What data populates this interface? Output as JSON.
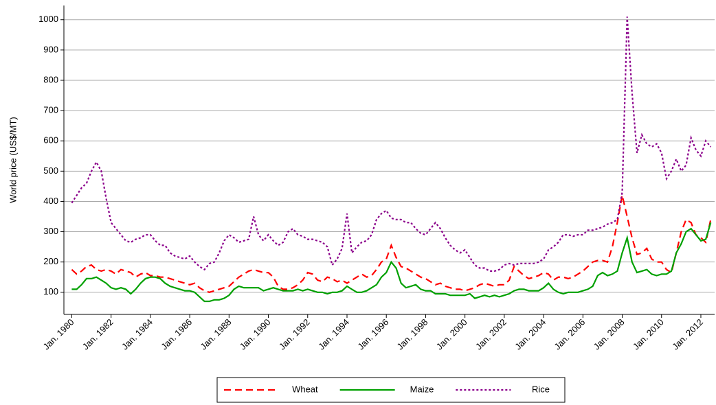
{
  "chart_data": {
    "type": "line",
    "y_label": "World price (US$/MT)",
    "x": [
      1980,
      1980.25,
      1980.5,
      1980.75,
      1981,
      1981.25,
      1981.5,
      1981.75,
      1982,
      1982.25,
      1982.5,
      1982.75,
      1983,
      1983.25,
      1983.5,
      1983.75,
      1984,
      1984.25,
      1984.5,
      1984.75,
      1985,
      1985.25,
      1985.5,
      1985.75,
      1986,
      1986.25,
      1986.5,
      1986.75,
      1987,
      1987.25,
      1987.5,
      1987.75,
      1988,
      1988.25,
      1988.5,
      1988.75,
      1989,
      1989.25,
      1989.5,
      1989.75,
      1990,
      1990.25,
      1990.5,
      1990.75,
      1991,
      1991.25,
      1991.5,
      1991.75,
      1992,
      1992.25,
      1992.5,
      1992.75,
      1993,
      1993.25,
      1993.5,
      1993.75,
      1994,
      1994.25,
      1994.5,
      1994.75,
      1995,
      1995.25,
      1995.5,
      1995.75,
      1996,
      1996.25,
      1996.5,
      1996.75,
      1997,
      1997.25,
      1997.5,
      1997.75,
      1998,
      1998.25,
      1998.5,
      1998.75,
      1999,
      1999.25,
      1999.5,
      1999.75,
      2000,
      2000.25,
      2000.5,
      2000.75,
      2001,
      2001.25,
      2001.5,
      2001.75,
      2002,
      2002.25,
      2002.5,
      2002.75,
      2003,
      2003.25,
      2003.5,
      2003.75,
      2004,
      2004.25,
      2004.5,
      2004.75,
      2005,
      2005.25,
      2005.5,
      2005.75,
      2006,
      2006.25,
      2006.5,
      2006.75,
      2007,
      2007.25,
      2007.5,
      2007.75,
      2008,
      2008.25,
      2008.5,
      2008.75,
      2009,
      2009.25,
      2009.5,
      2009.75,
      2010,
      2010.25,
      2010.5,
      2010.75,
      2011,
      2011.25,
      2011.5,
      2011.75,
      2012,
      2012.25,
      2012.5
    ],
    "series": [
      {
        "name": "Wheat",
        "color": "#ff0000",
        "dash": "10 6",
        "values": [
          175,
          160,
          170,
          185,
          190,
          175,
          170,
          175,
          170,
          160,
          175,
          170,
          165,
          150,
          160,
          165,
          155,
          155,
          150,
          150,
          145,
          140,
          135,
          130,
          125,
          130,
          115,
          105,
          100,
          105,
          110,
          115,
          120,
          135,
          150,
          160,
          170,
          175,
          170,
          165,
          165,
          150,
          120,
          110,
          110,
          115,
          125,
          140,
          165,
          160,
          140,
          135,
          150,
          145,
          135,
          140,
          130,
          140,
          150,
          160,
          150,
          155,
          175,
          200,
          210,
          255,
          215,
          185,
          180,
          170,
          160,
          150,
          145,
          135,
          125,
          130,
          120,
          115,
          110,
          110,
          105,
          110,
          115,
          125,
          130,
          125,
          120,
          125,
          125,
          140,
          185,
          170,
          155,
          145,
          150,
          155,
          165,
          160,
          140,
          150,
          150,
          145,
          150,
          160,
          170,
          185,
          200,
          205,
          205,
          200,
          250,
          330,
          420,
          350,
          280,
          225,
          230,
          245,
          210,
          200,
          200,
          175,
          165,
          230,
          300,
          340,
          330,
          290,
          280,
          265,
          340
        ]
      },
      {
        "name": "Maize",
        "color": "#00a000",
        "dash": "",
        "values": [
          110,
          110,
          125,
          145,
          145,
          150,
          140,
          130,
          115,
          110,
          115,
          110,
          95,
          110,
          130,
          145,
          150,
          150,
          145,
          130,
          120,
          115,
          110,
          105,
          105,
          100,
          85,
          70,
          70,
          75,
          75,
          80,
          90,
          110,
          120,
          115,
          115,
          115,
          115,
          105,
          110,
          115,
          110,
          105,
          105,
          105,
          110,
          105,
          110,
          105,
          100,
          100,
          95,
          100,
          100,
          105,
          120,
          110,
          100,
          100,
          105,
          115,
          125,
          150,
          165,
          200,
          180,
          130,
          115,
          120,
          125,
          110,
          105,
          105,
          95,
          95,
          95,
          90,
          90,
          90,
          90,
          95,
          80,
          85,
          90,
          85,
          90,
          85,
          90,
          95,
          105,
          110,
          110,
          105,
          105,
          105,
          115,
          130,
          110,
          100,
          95,
          100,
          100,
          100,
          105,
          110,
          120,
          155,
          165,
          155,
          160,
          170,
          230,
          280,
          200,
          165,
          170,
          175,
          160,
          155,
          160,
          160,
          170,
          230,
          260,
          300,
          310,
          290,
          270,
          275,
          330
        ]
      },
      {
        "name": "Rice",
        "color": "#8b008b",
        "dash": "3 3",
        "values": [
          395,
          420,
          445,
          460,
          500,
          530,
          500,
          410,
          330,
          310,
          290,
          270,
          265,
          275,
          280,
          290,
          290,
          270,
          255,
          255,
          230,
          220,
          215,
          210,
          220,
          200,
          185,
          175,
          195,
          200,
          230,
          270,
          290,
          280,
          265,
          270,
          275,
          350,
          290,
          270,
          290,
          270,
          255,
          265,
          300,
          310,
          290,
          285,
          275,
          275,
          270,
          265,
          250,
          190,
          210,
          245,
          360,
          230,
          250,
          265,
          270,
          290,
          340,
          360,
          370,
          345,
          340,
          340,
          330,
          330,
          310,
          295,
          290,
          310,
          330,
          310,
          280,
          255,
          240,
          230,
          240,
          215,
          190,
          180,
          180,
          170,
          170,
          175,
          190,
          195,
          190,
          195,
          195,
          195,
          195,
          200,
          210,
          240,
          250,
          265,
          290,
          290,
          285,
          290,
          290,
          305,
          305,
          310,
          315,
          325,
          330,
          340,
          430,
          1010,
          760,
          560,
          620,
          590,
          580,
          590,
          560,
          475,
          500,
          540,
          500,
          520,
          610,
          570,
          550,
          600,
          580
        ]
      }
    ],
    "xlim": [
      1979.6,
      2012.7
    ],
    "ylim": [
      27,
      1047
    ],
    "yticks": [
      100,
      200,
      300,
      400,
      500,
      600,
      700,
      800,
      900,
      1000
    ],
    "xticks": [
      {
        "value": 1980,
        "label": "Jan. 1980"
      },
      {
        "value": 1982,
        "label": "Jan. 1982"
      },
      {
        "value": 1984,
        "label": "Jan. 1984"
      },
      {
        "value": 1986,
        "label": "Jan. 1986"
      },
      {
        "value": 1988,
        "label": "Jan. 1988"
      },
      {
        "value": 1990,
        "label": "Jan. 1990"
      },
      {
        "value": 1992,
        "label": "Jan. 1992"
      },
      {
        "value": 1994,
        "label": "Jan. 1994"
      },
      {
        "value": 1996,
        "label": "Jan. 1996"
      },
      {
        "value": 1998,
        "label": "Jan. 1998"
      },
      {
        "value": 2000,
        "label": "Jan. 2000"
      },
      {
        "value": 2002,
        "label": "Jan. 2002"
      },
      {
        "value": 2004,
        "label": "Jan. 2004"
      },
      {
        "value": 2006,
        "label": "Jan. 2006"
      },
      {
        "value": 2008,
        "label": "Jan. 2008"
      },
      {
        "value": 2010,
        "label": "Jan. 2010"
      },
      {
        "value": 2012,
        "label": "Jan. 2012"
      }
    ],
    "grid": true
  }
}
